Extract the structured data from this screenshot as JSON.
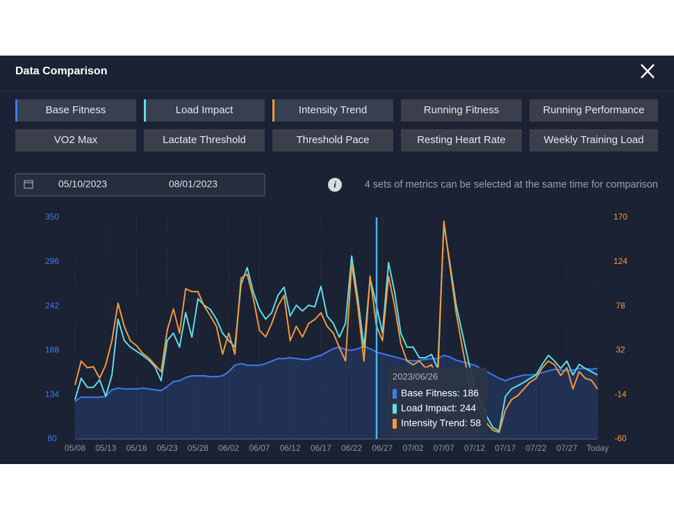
{
  "header": {
    "title": "Data Comparison"
  },
  "metrics": [
    "Base Fitness",
    "Load Impact",
    "Intensity Trend",
    "Running Fitness",
    "Running Performance",
    "VO2 Max",
    "Lactate Threshold",
    "Threshold Pace",
    "Resting Heart Rate",
    "Weekly Training Load"
  ],
  "date_range": {
    "start": "05/10/2023",
    "end": "08/01/2023"
  },
  "hint": "4 sets of metrics can be selected at the same time for comparison",
  "tooltip": {
    "title": "2023/06/26",
    "items": [
      "Base Fitness: 186",
      "Load Impact: 244",
      "Intensity Trend: 58"
    ]
  },
  "chart_data": {
    "type": "line",
    "categories": [
      "05/08",
      null,
      null,
      null,
      null,
      "05/13",
      null,
      null,
      null,
      null,
      "05/18",
      null,
      null,
      null,
      null,
      "05/23",
      null,
      null,
      null,
      null,
      "05/28",
      null,
      null,
      null,
      null,
      "06/02",
      null,
      null,
      null,
      null,
      "06/07",
      null,
      null,
      null,
      null,
      "06/12",
      null,
      null,
      null,
      null,
      "06/17",
      null,
      null,
      null,
      null,
      "06/22",
      null,
      null,
      null,
      null,
      "06/27",
      null,
      null,
      null,
      null,
      "07/02",
      null,
      null,
      null,
      null,
      "07/07",
      null,
      null,
      null,
      null,
      "07/12",
      null,
      null,
      null,
      null,
      "07/17",
      null,
      null,
      null,
      null,
      "07/22",
      null,
      null,
      null,
      null,
      "07/27",
      null,
      null,
      null,
      null,
      "Today"
    ],
    "ylim": [
      80,
      350
    ],
    "yticks": [
      80,
      134,
      188,
      242,
      296,
      350
    ],
    "y2lim": [
      -60,
      170
    ],
    "y2ticks": [
      -60,
      -14,
      32,
      78,
      124,
      170
    ],
    "series": [
      {
        "name": "Base Fitness",
        "color": "#3d7cf0",
        "area": true,
        "values": [
          126,
          131,
          131,
          131,
          131,
          132,
          140,
          142,
          141,
          141,
          141,
          142,
          141,
          140,
          139,
          144,
          150,
          151,
          155,
          157,
          157,
          157,
          156,
          156,
          157,
          162,
          170,
          172,
          170,
          170,
          170,
          172,
          175,
          178,
          178,
          179,
          178,
          177,
          177,
          180,
          182,
          186,
          190,
          192,
          189,
          188,
          190,
          193,
          190,
          186,
          184,
          182,
          180,
          178,
          176,
          175,
          176,
          177,
          178,
          178,
          182,
          180,
          176,
          174,
          172,
          170,
          166,
          162,
          158,
          154,
          151,
          154,
          156,
          158,
          158,
          159,
          161,
          163,
          165,
          164,
          163,
          164,
          166,
          166,
          165,
          166
        ]
      },
      {
        "name": "Load Impact",
        "color": "#5fe0e8",
        "values": [
          128,
          154,
          143,
          143,
          152,
          132,
          158,
          226,
          200,
          192,
          187,
          182,
          176,
          168,
          151,
          200,
          209,
          192,
          234,
          204,
          251,
          243,
          238,
          226,
          209,
          200,
          192,
          268,
          289,
          259,
          238,
          226,
          234,
          255,
          265,
          230,
          243,
          236,
          243,
          241,
          266,
          230,
          221,
          204,
          221,
          303,
          251,
          192,
          276,
          244,
          209,
          295,
          259,
          209,
          192,
          192,
          179,
          179,
          183,
          166,
          342,
          293,
          243,
          209,
          175,
          141,
          124,
          107,
          94,
          90,
          132,
          141,
          145,
          149,
          154,
          158,
          171,
          182,
          175,
          166,
          175,
          158,
          171,
          166,
          162,
          158
        ]
      },
      {
        "name": "Intensity Trend",
        "color": "#f59a3c",
        "axis": "y2",
        "values": [
          -4,
          21,
          14,
          15,
          3,
          17,
          42,
          81,
          57,
          42,
          37,
          29,
          24,
          17,
          10,
          53,
          75,
          50,
          96,
          93,
          93,
          78,
          68,
          57,
          28,
          50,
          28,
          107,
          111,
          86,
          53,
          46,
          60,
          78,
          89,
          42,
          57,
          46,
          60,
          64,
          71,
          57,
          50,
          35,
          21,
          122,
          78,
          21,
          109,
          58,
          42,
          109,
          78,
          39,
          21,
          17,
          21,
          14,
          17,
          3,
          166,
          118,
          71,
          35,
          3,
          -19,
          -33,
          -44,
          -51,
          -53,
          -30,
          -19,
          -15,
          -8,
          -1,
          3,
          14,
          21,
          17,
          6,
          14,
          -8,
          10,
          3,
          1,
          -8
        ]
      }
    ]
  }
}
